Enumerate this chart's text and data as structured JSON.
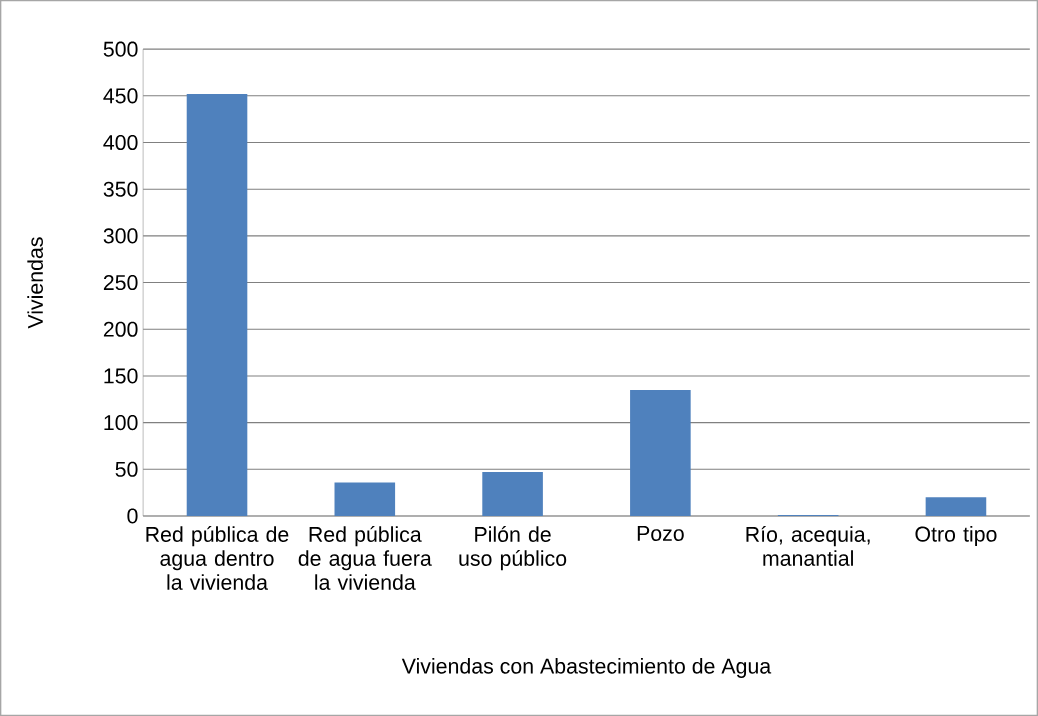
{
  "chart_data": {
    "type": "bar",
    "xlabel": "Viviendas con Abastecimiento de Agua",
    "ylabel": "Viviendas",
    "categories": [
      "Red pública de agua dentro la vivienda",
      "Red pública de agua fuera la vivienda",
      "Pilón de uso público",
      "Pozo",
      "Río, acequia, manantial",
      "Otro tipo"
    ],
    "values": [
      452,
      36,
      47,
      135,
      1,
      20
    ],
    "color": "#4f81bd",
    "ylim": [
      0,
      500
    ],
    "yticks": [
      0,
      50,
      100,
      150,
      200,
      250,
      300,
      350,
      400,
      450,
      500
    ],
    "grid": "y"
  }
}
